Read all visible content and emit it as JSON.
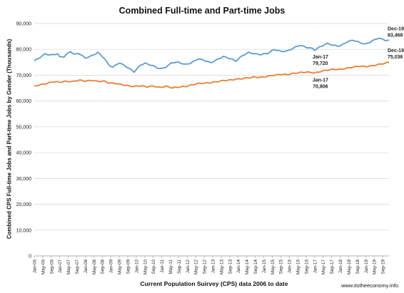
{
  "chart_data": {
    "type": "line",
    "title": "Combined Full-time and Part-time Jobs",
    "ylabel": "Combined CPS Full-time Jobs and Part-time Jobs by Gender (Thousands)",
    "xlabel": "Current Population Suirvey (CPS) data 2006 to date",
    "source_note": "www.itstheeconomy.info",
    "ylim": [
      0,
      90000
    ],
    "yticks": [
      "0",
      "10,000",
      "20,000",
      "30,000",
      "40,000",
      "50,000",
      "60,000",
      "70,000",
      "80,000",
      "90,000"
    ],
    "x_start": "2006-01",
    "x_end": "2019-12",
    "xtick_labels": [
      "Jan-06",
      "May-06",
      "Sep-06",
      "Jan-07",
      "May-07",
      "Sep-07",
      "Jan-08",
      "May-08",
      "Sep-08",
      "Jan-09",
      "May-09",
      "Sep-09",
      "Jan-10",
      "May-10",
      "Sep-10",
      "Jan-11",
      "May-11",
      "Sep-11",
      "Jan-12",
      "May-12",
      "Sep-12",
      "Jan-13",
      "May-13",
      "Sep-13",
      "Jan-14",
      "May-14",
      "Sep-14",
      "Jan-15",
      "May-15",
      "Sep-15",
      "Jan-16",
      "May-16",
      "Sep-16",
      "Jan-17",
      "May-17",
      "Sep-17",
      "Jan-18",
      "May-18",
      "Sep-18",
      "Jan-19",
      "May-19",
      "Sep-19"
    ],
    "grid": true,
    "legend": "none",
    "series": [
      {
        "color": "#5b9bd5",
        "anchors": [
          [
            "2006-01",
            75500
          ],
          [
            "2006-03",
            76500
          ],
          [
            "2006-06",
            78200
          ],
          [
            "2006-09",
            77800
          ],
          [
            "2006-12",
            78300
          ],
          [
            "2007-01",
            77000
          ],
          [
            "2007-03",
            77200
          ],
          [
            "2007-06",
            79200
          ],
          [
            "2007-08",
            78000
          ],
          [
            "2007-10",
            78500
          ],
          [
            "2008-01",
            76600
          ],
          [
            "2008-04",
            77500
          ],
          [
            "2008-07",
            78800
          ],
          [
            "2008-10",
            76500
          ],
          [
            "2008-12",
            74000
          ],
          [
            "2009-02",
            73100
          ],
          [
            "2009-05",
            74800
          ],
          [
            "2009-08",
            73500
          ],
          [
            "2009-10",
            72400
          ],
          [
            "2009-12",
            71300
          ],
          [
            "2010-03",
            73900
          ],
          [
            "2010-05",
            74600
          ],
          [
            "2010-08",
            73900
          ],
          [
            "2010-11",
            72800
          ],
          [
            "2011-01",
            72500
          ],
          [
            "2011-03",
            73200
          ],
          [
            "2011-06",
            74900
          ],
          [
            "2011-09",
            75000
          ],
          [
            "2011-12",
            74100
          ],
          [
            "2012-03",
            74800
          ],
          [
            "2012-06",
            76300
          ],
          [
            "2012-09",
            75800
          ],
          [
            "2012-12",
            74800
          ],
          [
            "2013-03",
            76000
          ],
          [
            "2013-06",
            77200
          ],
          [
            "2013-09",
            76500
          ],
          [
            "2013-12",
            75500
          ],
          [
            "2014-03",
            77600
          ],
          [
            "2014-06",
            78800
          ],
          [
            "2014-09",
            78200
          ],
          [
            "2014-12",
            78000
          ],
          [
            "2015-03",
            78500
          ],
          [
            "2015-06",
            80000
          ],
          [
            "2015-09",
            79200
          ],
          [
            "2015-12",
            79300
          ],
          [
            "2016-03",
            80500
          ],
          [
            "2016-06",
            81600
          ],
          [
            "2016-09",
            80800
          ],
          [
            "2016-12",
            80300
          ],
          [
            "2017-01",
            79720
          ],
          [
            "2017-04",
            81200
          ],
          [
            "2017-07",
            82300
          ],
          [
            "2017-10",
            81500
          ],
          [
            "2018-01",
            81300
          ],
          [
            "2018-04",
            82800
          ],
          [
            "2018-07",
            83600
          ],
          [
            "2018-10",
            82700
          ],
          [
            "2019-01",
            82000
          ],
          [
            "2019-04",
            83200
          ],
          [
            "2019-07",
            84400
          ],
          [
            "2019-10",
            83600
          ],
          [
            "2019-12",
            83468
          ]
        ],
        "annotations": [
          {
            "at": "2017-01",
            "label": "Jan-17",
            "value_label": "79,720"
          },
          {
            "at": "2019-12",
            "label": "Dec-19",
            "value_label": "83,468"
          }
        ]
      },
      {
        "color": "#ed7d31",
        "anchors": [
          [
            "2006-01",
            65800
          ],
          [
            "2006-04",
            66300
          ],
          [
            "2006-07",
            66800
          ],
          [
            "2006-10",
            67500
          ],
          [
            "2007-01",
            67300
          ],
          [
            "2007-04",
            67600
          ],
          [
            "2007-07",
            67500
          ],
          [
            "2007-10",
            68100
          ],
          [
            "2008-01",
            67700
          ],
          [
            "2008-04",
            68000
          ],
          [
            "2008-07",
            67600
          ],
          [
            "2008-10",
            67700
          ],
          [
            "2008-12",
            67000
          ],
          [
            "2009-03",
            66800
          ],
          [
            "2009-06",
            66400
          ],
          [
            "2009-09",
            65900
          ],
          [
            "2009-12",
            65600
          ],
          [
            "2010-03",
            65900
          ],
          [
            "2010-06",
            65500
          ],
          [
            "2010-09",
            65800
          ],
          [
            "2010-12",
            65200
          ],
          [
            "2011-03",
            65700
          ],
          [
            "2011-06",
            65100
          ],
          [
            "2011-09",
            65400
          ],
          [
            "2011-12",
            65600
          ],
          [
            "2012-03",
            66200
          ],
          [
            "2012-06",
            66800
          ],
          [
            "2012-09",
            66900
          ],
          [
            "2012-12",
            67100
          ],
          [
            "2013-03",
            67500
          ],
          [
            "2013-06",
            67900
          ],
          [
            "2013-09",
            68100
          ],
          [
            "2013-12",
            68400
          ],
          [
            "2014-03",
            68700
          ],
          [
            "2014-06",
            69000
          ],
          [
            "2014-09",
            69300
          ],
          [
            "2014-12",
            69200
          ],
          [
            "2015-03",
            69600
          ],
          [
            "2015-06",
            70000
          ],
          [
            "2015-09",
            70300
          ],
          [
            "2015-12",
            70200
          ],
          [
            "2016-03",
            70700
          ],
          [
            "2016-06",
            71000
          ],
          [
            "2016-09",
            71200
          ],
          [
            "2016-12",
            71000
          ],
          [
            "2017-01",
            70806
          ],
          [
            "2017-04",
            71500
          ],
          [
            "2017-07",
            72000
          ],
          [
            "2017-10",
            72300
          ],
          [
            "2018-01",
            72200
          ],
          [
            "2018-04",
            72700
          ],
          [
            "2018-07",
            73100
          ],
          [
            "2018-10",
            73500
          ],
          [
            "2019-01",
            73300
          ],
          [
            "2019-04",
            73600
          ],
          [
            "2019-07",
            74100
          ],
          [
            "2019-10",
            74600
          ],
          [
            "2019-12",
            75036
          ]
        ],
        "annotations": [
          {
            "at": "2017-01",
            "label": "Jan-17",
            "value_label": "70,806"
          },
          {
            "at": "2019-12",
            "label": "Dec-19",
            "value_label": "75,036"
          }
        ]
      }
    ]
  }
}
